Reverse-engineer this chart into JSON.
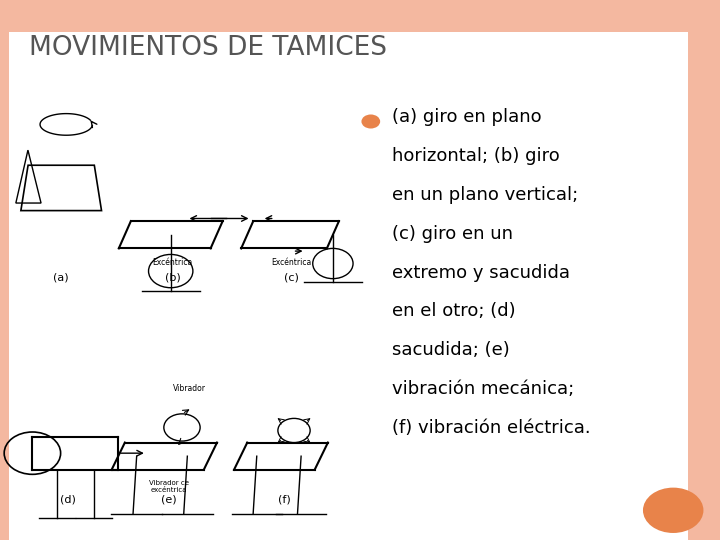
{
  "title_display": "MOVIMIENTOS DE TAMICES",
  "title_color": "#555555",
  "background_color": "#ffffff",
  "border_color": "#f4b8a0",
  "bullet_color": "#e8834a",
  "circle_color": "#e8834a",
  "bullet_lines": [
    "(a) giro en plano",
    "horizontal; (b) giro",
    "en un plano vertical;",
    "(c) giro en un",
    "extremo y sacudida",
    "en el otro; (d)",
    "sacudida; (e)",
    "vibración mecánica;",
    "(f) vibración eléctrica."
  ],
  "title_fontsize": 19,
  "bullet_fontsize": 13,
  "label_fontsize": 8,
  "small_label_fontsize": 5.5
}
